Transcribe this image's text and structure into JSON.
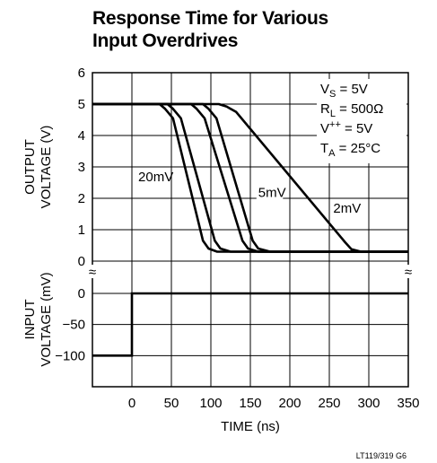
{
  "title_lines": [
    "Response Time for Various",
    "Input Overdrives"
  ],
  "conditions": [
    {
      "main": "V",
      "sub": "S",
      "sup": "",
      "rest": " = 5V"
    },
    {
      "main": "R",
      "sub": "L",
      "sup": "",
      "rest": " = 500Ω"
    },
    {
      "main": "V",
      "sub": "",
      "sup": "++",
      "rest": " = 5V"
    },
    {
      "main": "T",
      "sub": "A",
      "sup": "",
      "rest": " = 25°C"
    }
  ],
  "footer": "LT119/319 G6",
  "break_mark": "≈",
  "chart_data": [
    {
      "type": "line",
      "panel": "output",
      "ylabel_lines": [
        "OUTPUT",
        "VOLTAGE (V)"
      ],
      "xlim": [
        -50,
        350
      ],
      "ylim": [
        0,
        6
      ],
      "yticks": [
        0,
        1,
        2,
        3,
        4,
        5,
        6
      ],
      "grid": true,
      "series": [
        {
          "name": "20mV",
          "x": [
            -50,
            35,
            42,
            52,
            90,
            97,
            108,
            350
          ],
          "y": [
            5.0,
            5.0,
            4.85,
            4.55,
            0.65,
            0.4,
            0.3,
            0.3
          ]
        },
        {
          "name": "20mV",
          "x": [
            -50,
            45,
            52,
            62,
            105,
            112,
            125,
            350
          ],
          "y": [
            5.0,
            5.0,
            4.85,
            4.55,
            0.65,
            0.4,
            0.3,
            0.3
          ]
        },
        {
          "name": "5mV",
          "x": [
            -50,
            75,
            82,
            92,
            140,
            147,
            160,
            350
          ],
          "y": [
            5.0,
            5.0,
            4.85,
            4.55,
            0.65,
            0.4,
            0.3,
            0.3
          ]
        },
        {
          "name": "5mV",
          "x": [
            -50,
            90,
            97,
            107,
            153,
            160,
            175,
            350
          ],
          "y": [
            5.0,
            5.0,
            4.85,
            4.55,
            0.65,
            0.4,
            0.3,
            0.3
          ]
        },
        {
          "name": "2mV",
          "x": [
            -50,
            110,
            120,
            132,
            270,
            278,
            290,
            350
          ],
          "y": [
            5.0,
            5.0,
            4.92,
            4.75,
            0.6,
            0.38,
            0.3,
            0.3
          ]
        }
      ],
      "annotations": [
        {
          "text": "20mV",
          "x": 8,
          "y": 2.55
        },
        {
          "text": "5mV",
          "x": 160,
          "y": 2.05
        },
        {
          "text": "2mV",
          "x": 255,
          "y": 1.55
        }
      ]
    },
    {
      "type": "line",
      "panel": "input",
      "ylabel_lines": [
        "INPUT",
        "VOLTAGE (mV)"
      ],
      "xlabel": "TIME (ns)",
      "xlim": [
        -50,
        350
      ],
      "ylim": [
        -150,
        0
      ],
      "yticks": [
        0,
        -50,
        -100
      ],
      "ytick_labels": [
        "0",
        "−50",
        "−100"
      ],
      "xticks": [
        0,
        50,
        100,
        150,
        200,
        250,
        300,
        350
      ],
      "grid": true,
      "series": [
        {
          "name": "",
          "x": [
            -50,
            0,
            0,
            350
          ],
          "y": [
            -100,
            -100,
            0,
            0
          ]
        }
      ]
    }
  ]
}
